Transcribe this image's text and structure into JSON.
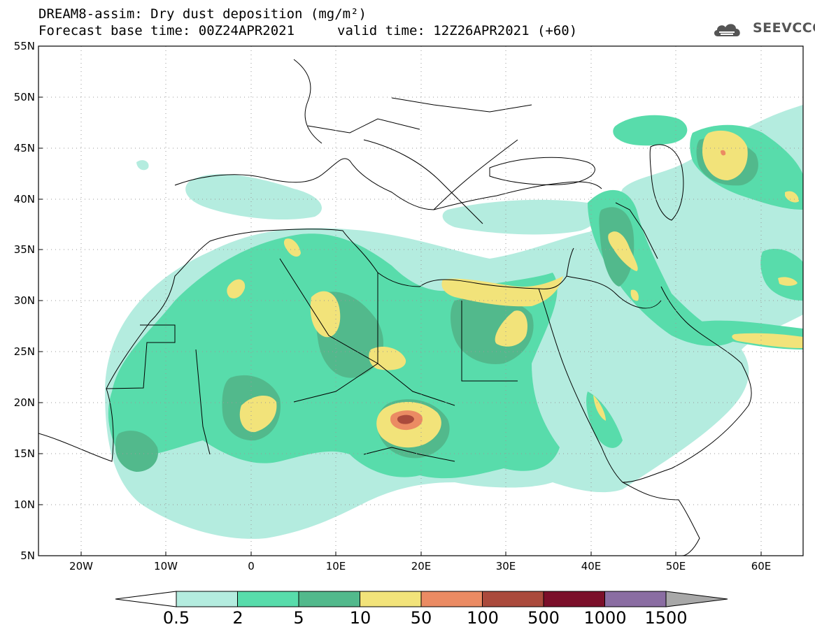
{
  "header": {
    "title": "DREAM8-assim: Dry dust deposition (mg/m²)",
    "base_time": "Forecast base time: 00Z24APR2021",
    "valid_time": "valid time: 12Z26APR2021 (+60)",
    "logo_text": "SEEVCCC"
  },
  "map": {
    "lat_range": [
      5,
      55
    ],
    "lon_range": [
      -25,
      65
    ],
    "lat_ticks": [
      "5N",
      "10N",
      "15N",
      "20N",
      "25N",
      "30N",
      "35N",
      "40N",
      "45N",
      "50N",
      "55N"
    ],
    "lon_ticks": [
      "20W",
      "10W",
      "0",
      "10E",
      "20E",
      "30E",
      "40E",
      "50E",
      "60E"
    ],
    "grid": "dotted"
  },
  "colorbar": {
    "labels": [
      "0.5",
      "2",
      "5",
      "10",
      "50",
      "100",
      "500",
      "1000",
      "1500"
    ],
    "colors": [
      "#b4ecdf",
      "#58dcab",
      "#52b98c",
      "#f2e37a",
      "#eb8b63",
      "#aa4a3c",
      "#7b0f2a",
      "#8a6da2"
    ],
    "under_color": "#ffffff",
    "over_color": "#a8a8a8"
  }
}
